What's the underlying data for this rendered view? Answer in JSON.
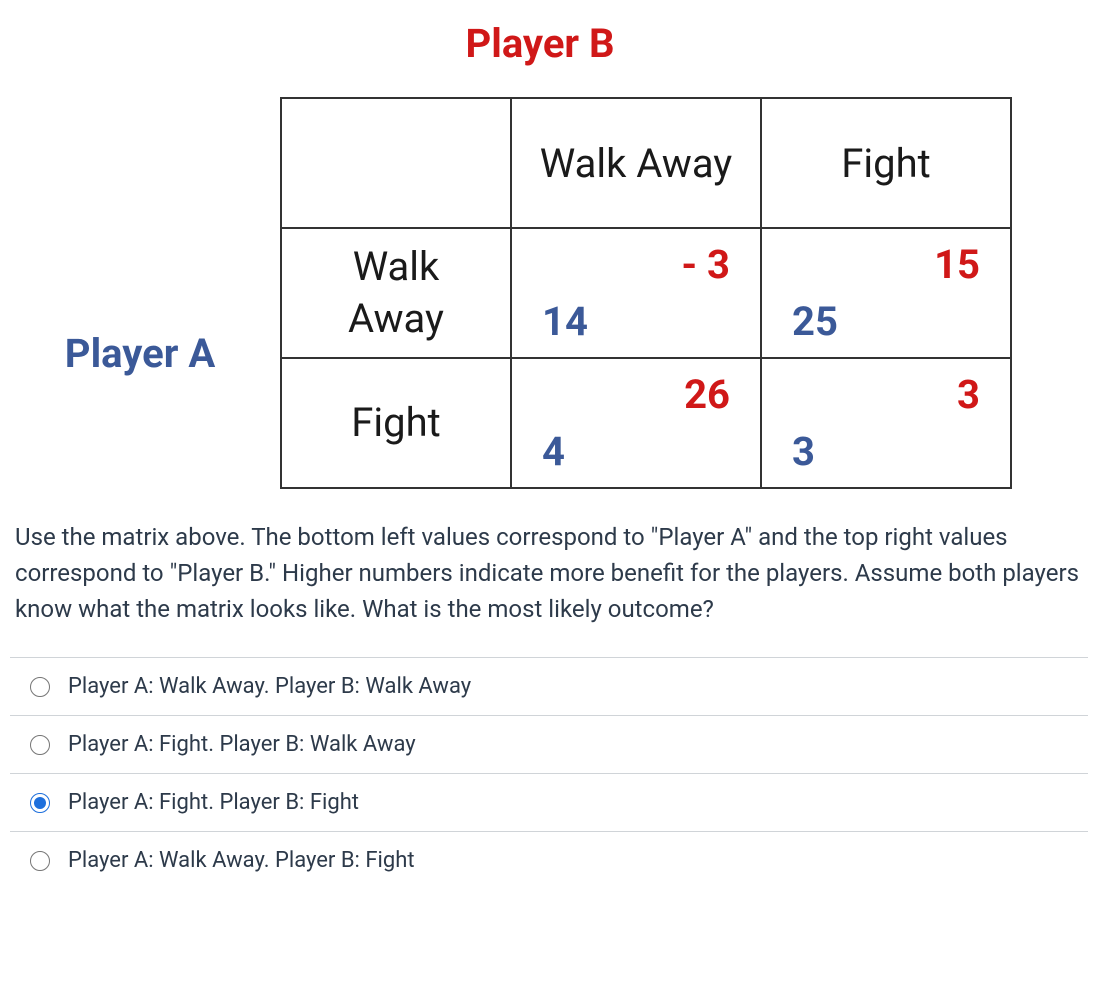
{
  "matrix": {
    "player_b_label": "Player B",
    "player_a_label": "Player A",
    "col_headers": [
      "Walk Away",
      "Fight"
    ],
    "row_headers": [
      "Walk Away",
      "Fight"
    ],
    "cells": {
      "r0c0": {
        "a_payoff": "14",
        "b_payoff": "- 3"
      },
      "r0c1": {
        "a_payoff": "25",
        "b_payoff": "15"
      },
      "r1c0": {
        "a_payoff": "4",
        "b_payoff": "26"
      },
      "r1c1": {
        "a_payoff": "3",
        "b_payoff": "3"
      }
    },
    "colors": {
      "player_a_color": "#3b5998",
      "player_b_color": "#d01818",
      "border_color": "#333333",
      "text_color": "#1a1a1a"
    },
    "font_sizes": {
      "player_label": 40,
      "header_cell": 40,
      "payoff": 40
    }
  },
  "question": "Use the matrix above. The bottom left values correspond to \"Player A\" and the top right values correspond to \"Player B.\" Higher numbers indicate more benefit for the players. Assume both players know what the matrix looks like. What is the most likely outcome?",
  "options": [
    {
      "label": "Player A: Walk Away. Player B: Walk Away",
      "selected": false
    },
    {
      "label": "Player A: Fight. Player B: Walk Away",
      "selected": false
    },
    {
      "label": "Player A: Fight. Player B: Fight",
      "selected": true
    },
    {
      "label": "Player A: Walk Away. Player B: Fight",
      "selected": false
    }
  ]
}
